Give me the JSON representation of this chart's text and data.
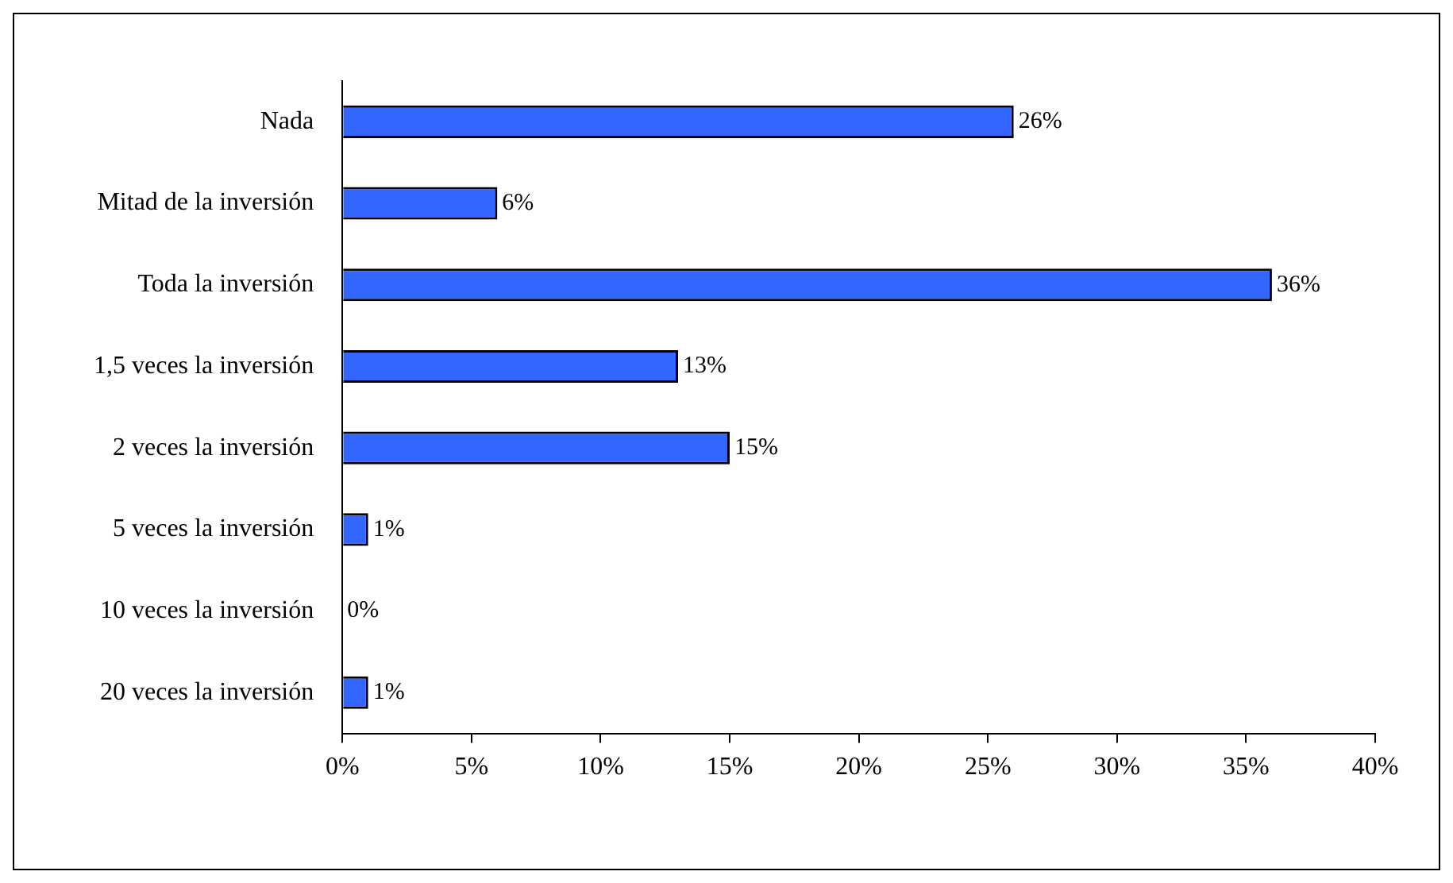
{
  "chart_data": {
    "type": "bar",
    "orientation": "horizontal",
    "categories": [
      "Nada",
      "Mitad de la inversión",
      "Toda la inversión",
      "1,5 veces la inversión",
      "2 veces la inversión",
      "5 veces la inversión",
      "10 veces la inversión",
      "20 veces la inversión"
    ],
    "values": [
      26,
      6,
      36,
      13,
      15,
      1,
      0,
      1
    ],
    "value_labels": [
      "26%",
      "6%",
      "36%",
      "13%",
      "15%",
      "1%",
      "0%",
      "1%"
    ],
    "color": "#3366ff",
    "xlim": [
      0,
      40
    ],
    "xticks": [
      {
        "value": 0,
        "label": "0%"
      },
      {
        "value": 5,
        "label": "5%"
      },
      {
        "value": 10,
        "label": "10%"
      },
      {
        "value": 15,
        "label": "15%"
      },
      {
        "value": 20,
        "label": "20%"
      },
      {
        "value": 25,
        "label": "25%"
      },
      {
        "value": 30,
        "label": "30%"
      },
      {
        "value": 35,
        "label": "35%"
      },
      {
        "value": 40,
        "label": "40%"
      }
    ],
    "legend": false
  }
}
